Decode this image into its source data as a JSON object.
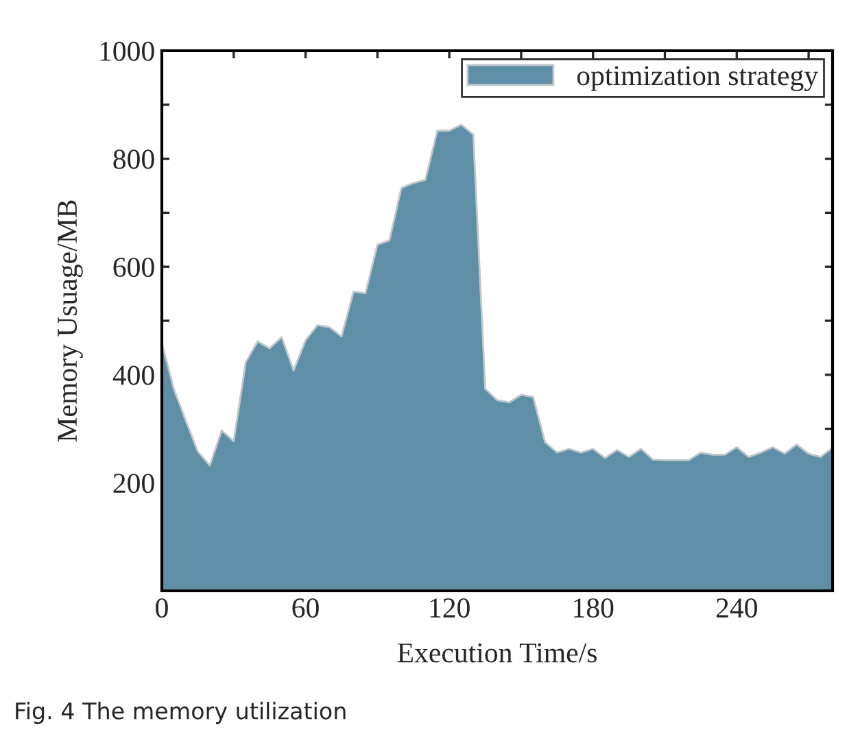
{
  "chart_data": {
    "type": "area",
    "xlabel": "Execution Time/s",
    "ylabel": "Memory Usuage/MB",
    "annotations": [
      "Fig. 4 The memory utilization"
    ],
    "x": [
      0,
      5,
      10,
      15,
      20,
      25,
      30,
      35,
      40,
      45,
      50,
      55,
      60,
      65,
      70,
      75,
      80,
      85,
      90,
      95,
      100,
      105,
      110,
      115,
      120,
      125,
      130,
      135,
      140,
      145,
      150,
      155,
      160,
      165,
      170,
      175,
      180,
      185,
      190,
      195,
      200,
      205,
      210,
      215,
      220,
      225,
      230,
      235,
      240,
      245,
      250,
      255,
      260,
      265,
      270,
      275,
      280
    ],
    "series": [
      {
        "name": "optimization strategy",
        "color": "#5f8fa6",
        "values": [
          459,
          374,
          315,
          258,
          232,
          297,
          277,
          423,
          462,
          449,
          470,
          408,
          464,
          492,
          488,
          471,
          554,
          551,
          641,
          649,
          746,
          755,
          761,
          852,
          852,
          863,
          845,
          374,
          353,
          349,
          363,
          359,
          275,
          256,
          263,
          256,
          263,
          246,
          261,
          248,
          263,
          243,
          242,
          242,
          242,
          256,
          252,
          252,
          266,
          248,
          256,
          266,
          254,
          271,
          254,
          248,
          265
        ]
      }
    ],
    "xlim": [
      0,
      280
    ],
    "ylim": [
      0,
      1000
    ],
    "xticks": [
      0,
      {
        "value": 30,
        "label": null
      },
      60,
      {
        "value": 90,
        "label": null
      },
      120,
      {
        "value": 150,
        "label": null
      },
      180,
      {
        "value": 210,
        "label": null
      },
      240,
      {
        "value": 270,
        "label": null
      }
    ],
    "yticks": [
      {
        "value": 0,
        "label": null
      },
      {
        "value": 100,
        "label": null
      },
      200,
      {
        "value": 300,
        "label": null
      },
      400,
      {
        "value": 500,
        "label": null
      },
      600,
      {
        "value": 700,
        "label": null
      },
      800,
      {
        "value": 900,
        "label": null
      },
      1000
    ],
    "legend": "top right",
    "grid": false
  }
}
